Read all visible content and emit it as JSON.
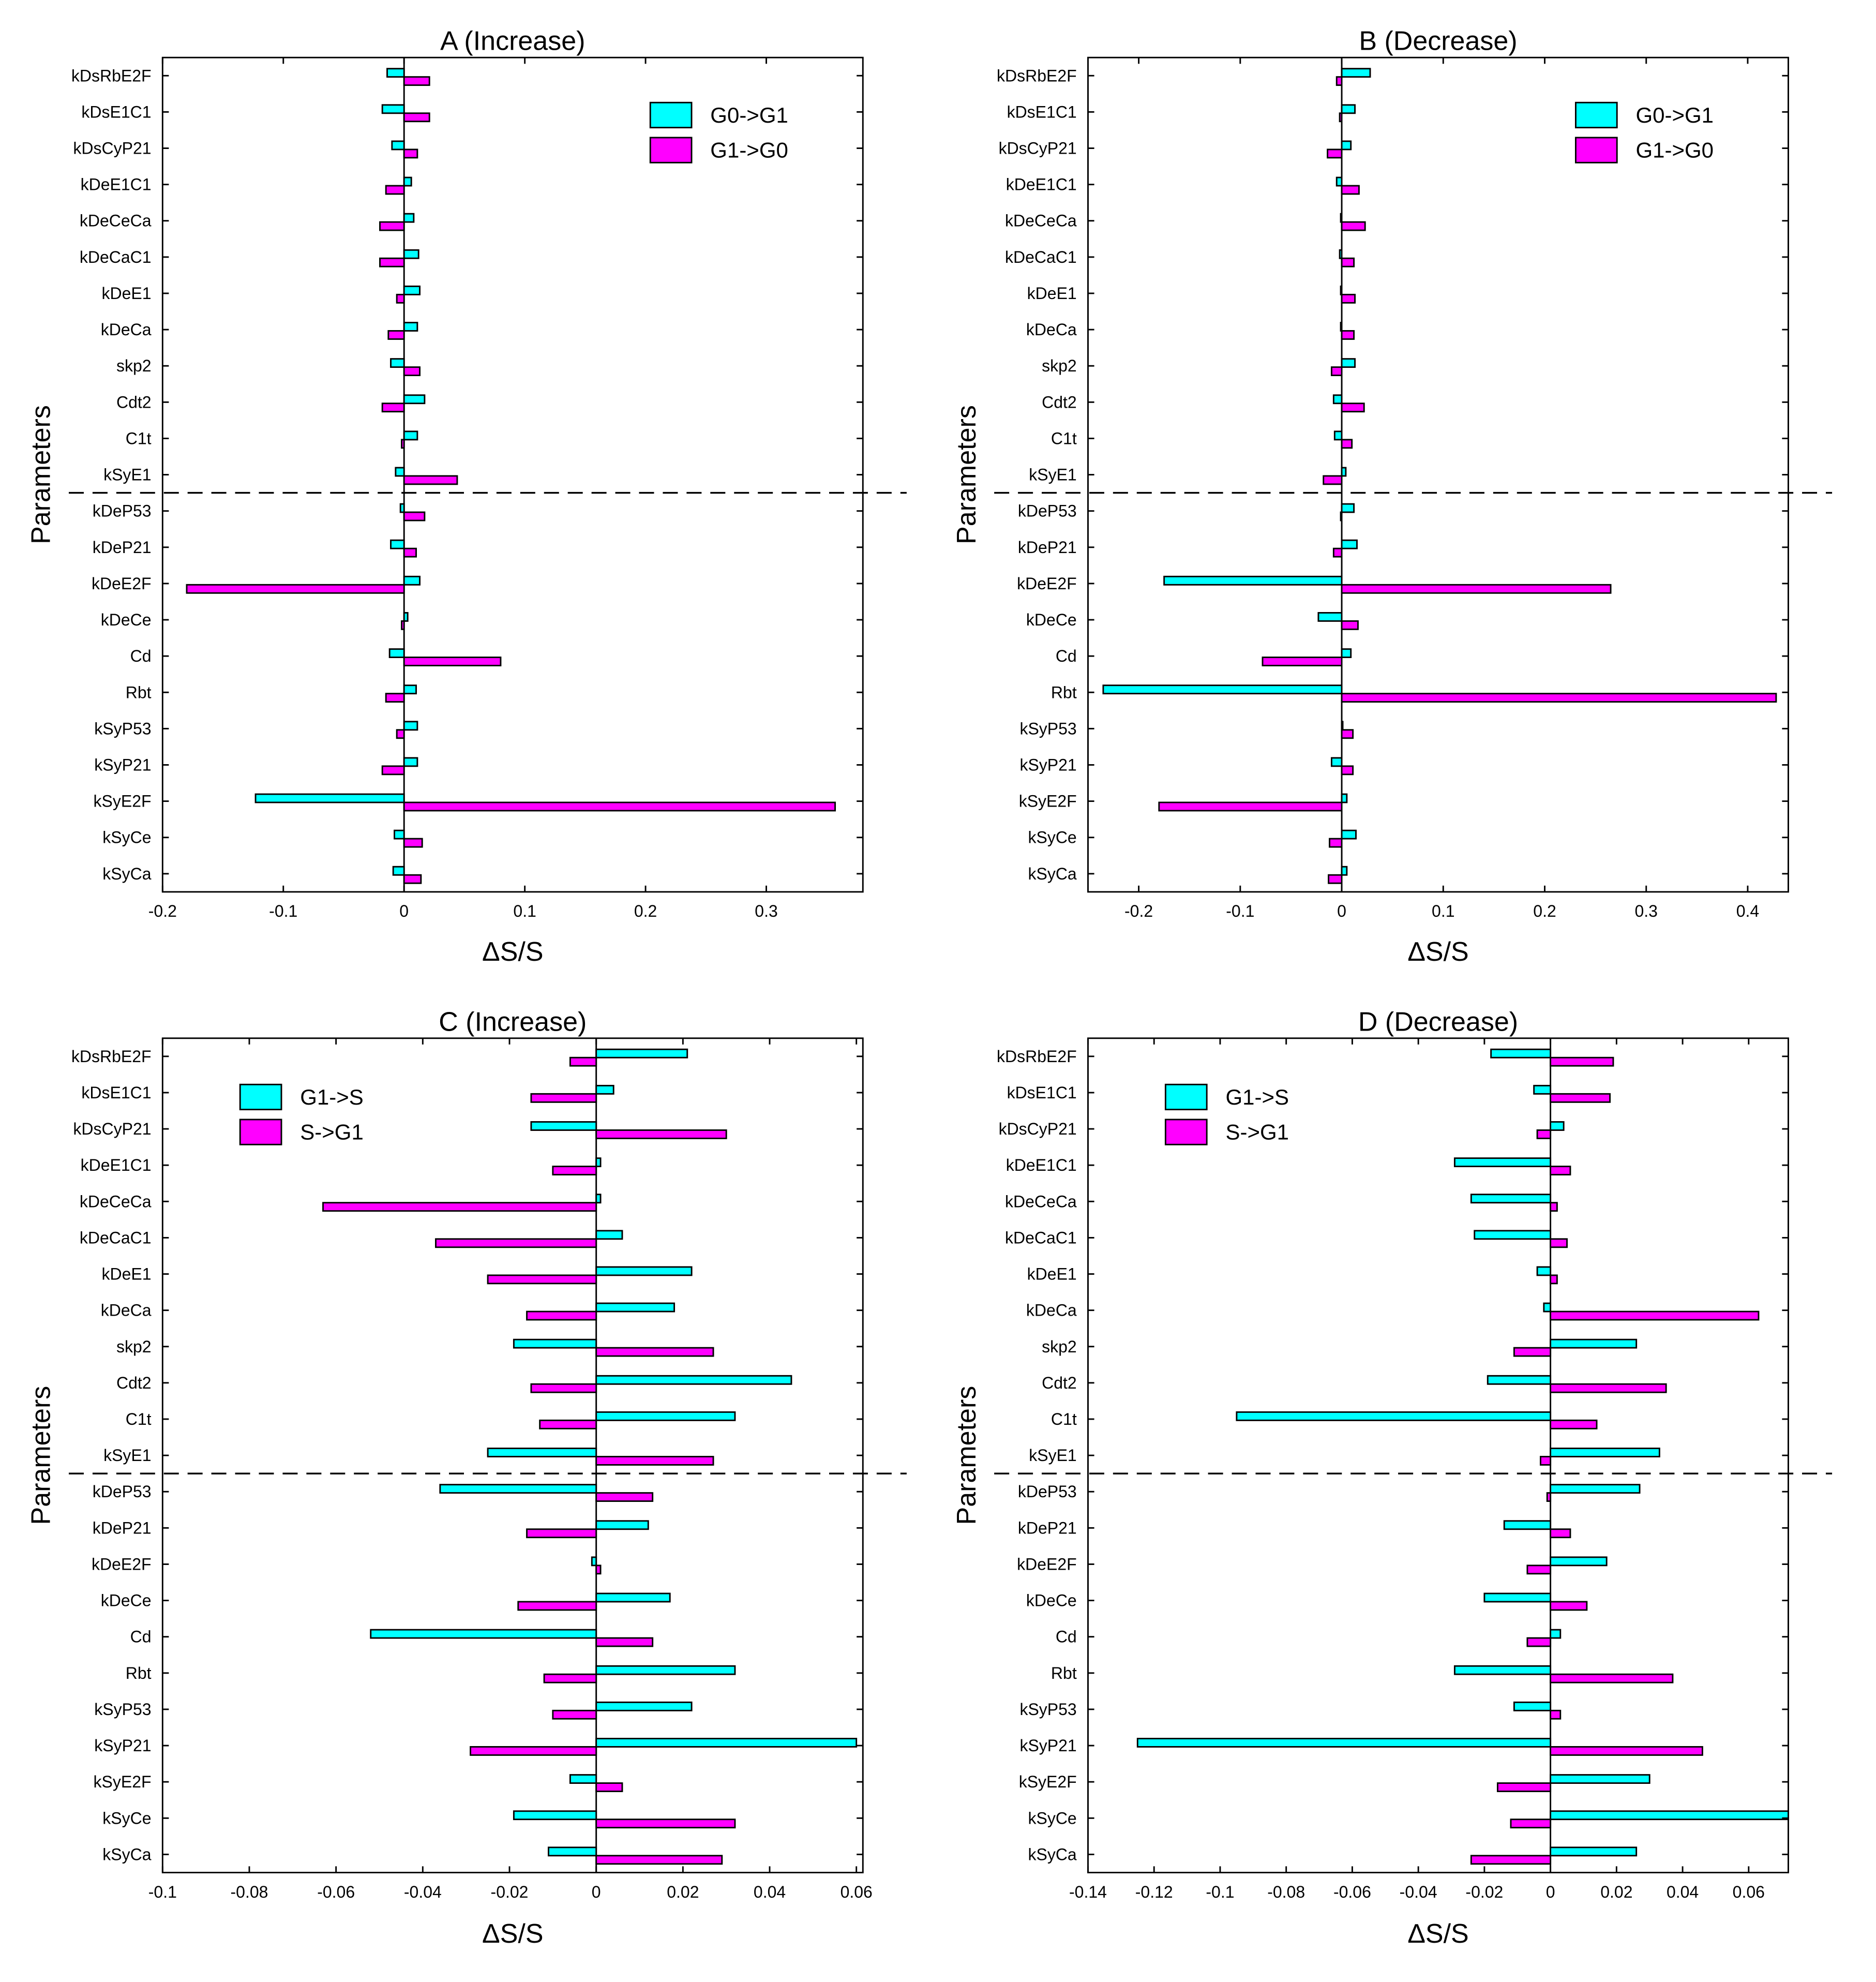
{
  "colors": {
    "series1": "#00FFFF",
    "series2": "#FF00FF",
    "edge": "#000000"
  },
  "chart_data": [
    {
      "type": "bar",
      "orientation": "horizontal",
      "title": "A (Increase)",
      "xlabel": "ΔS/S",
      "ylabel": "Parameters",
      "xlim": [
        -0.2,
        0.38
      ],
      "xticks": [
        -0.2,
        -0.1,
        0,
        0.1,
        0.2,
        0.3
      ],
      "xtick_labels": [
        "-0.2",
        "-0.1",
        "0",
        "0.1",
        "0.2",
        "0.3"
      ],
      "legend_position": "top-right",
      "divider_after_index": 11,
      "categories": [
        "kDsRbE2F",
        "kDsE1C1",
        "kDsCyP21",
        "kDeE1C1",
        "kDeCeCa",
        "kDeCaC1",
        "kDeE1",
        "kDeCa",
        "skp2",
        "Cdt2",
        "C1t",
        "kSyE1",
        "kDeP53",
        "kDeP21",
        "kDeE2F",
        "kDeCe",
        "Cd",
        "Rbt",
        "kSyP53",
        "kSyP21",
        "kSyE2F",
        "kSyCe",
        "kSyCa"
      ],
      "series": [
        {
          "name": "G0->G1",
          "values": [
            -0.014,
            -0.018,
            -0.01,
            0.006,
            0.008,
            0.012,
            0.013,
            0.011,
            -0.011,
            0.017,
            0.011,
            -0.007,
            -0.003,
            -0.011,
            0.013,
            0.003,
            -0.012,
            0.01,
            0.011,
            0.011,
            -0.123,
            -0.008,
            -0.009
          ]
        },
        {
          "name": "G1->G0",
          "values": [
            0.021,
            0.021,
            0.011,
            -0.015,
            -0.02,
            -0.02,
            -0.006,
            -0.013,
            0.013,
            -0.018,
            -0.002,
            0.044,
            0.017,
            0.01,
            -0.18,
            -0.002,
            0.08,
            -0.015,
            -0.006,
            -0.018,
            0.357,
            0.015,
            0.014
          ]
        }
      ]
    },
    {
      "type": "bar",
      "orientation": "horizontal",
      "title": "B (Decrease)",
      "xlabel": "ΔS/S",
      "ylabel": "Parameters",
      "xlim": [
        -0.25,
        0.44
      ],
      "xticks": [
        -0.2,
        -0.1,
        0,
        0.1,
        0.2,
        0.3,
        0.4
      ],
      "xtick_labels": [
        "-0.2",
        "-0.1",
        "0",
        "0.1",
        "0.2",
        "0.3",
        "0.4"
      ],
      "legend_position": "top-right",
      "divider_after_index": 11,
      "categories": [
        "kDsRbE2F",
        "kDsE1C1",
        "kDsCyP21",
        "kDeE1C1",
        "kDeCeCa",
        "kDeCaC1",
        "kDeE1",
        "kDeCa",
        "skp2",
        "Cdt2",
        "C1t",
        "kSyE1",
        "kDeP53",
        "kDeP21",
        "kDeE2F",
        "kDeCe",
        "Cd",
        "Rbt",
        "kSyP53",
        "kSyP21",
        "kSyE2F",
        "kSyCe",
        "kSyCa"
      ],
      "series": [
        {
          "name": "G0->G1",
          "values": [
            0.028,
            0.013,
            0.009,
            -0.005,
            -0.001,
            -0.002,
            -0.001,
            -0.001,
            0.013,
            -0.008,
            -0.007,
            0.004,
            0.012,
            0.015,
            -0.175,
            -0.023,
            0.009,
            -0.235,
            0.001,
            -0.01,
            0.005,
            0.014,
            0.005
          ]
        },
        {
          "name": "G1->G0",
          "values": [
            -0.005,
            -0.002,
            -0.014,
            0.017,
            0.023,
            0.012,
            0.013,
            0.012,
            -0.01,
            0.022,
            0.01,
            -0.018,
            -0.001,
            -0.008,
            0.265,
            0.016,
            -0.078,
            0.428,
            0.011,
            0.011,
            -0.18,
            -0.012,
            -0.013
          ]
        }
      ]
    },
    {
      "type": "bar",
      "orientation": "horizontal",
      "title": "C (Increase)",
      "xlabel": "ΔS/S",
      "ylabel": "Parameters",
      "xlim": [
        -0.1,
        0.0615
      ],
      "xticks": [
        -0.1,
        -0.08,
        -0.06,
        -0.04,
        -0.02,
        0,
        0.02,
        0.04,
        0.06
      ],
      "xtick_labels": [
        "-0.1",
        "-0.08",
        "-0.06",
        "-0.04",
        "-0.02",
        "0",
        "0.02",
        "0.04",
        "0.06"
      ],
      "legend_position": "top-left",
      "divider_after_index": 11,
      "categories": [
        "kDsRbE2F",
        "kDsE1C1",
        "kDsCyP21",
        "kDeE1C1",
        "kDeCeCa",
        "kDeCaC1",
        "kDeE1",
        "kDeCa",
        "skp2",
        "Cdt2",
        "C1t",
        "kSyE1",
        "kDeP53",
        "kDeP21",
        "kDeE2F",
        "kDeCe",
        "Cd",
        "Rbt",
        "kSyP53",
        "kSyP21",
        "kSyE2F",
        "kSyCe",
        "kSyCa"
      ],
      "series": [
        {
          "name": "G1->S",
          "values": [
            0.021,
            0.004,
            -0.015,
            0.001,
            0.001,
            0.006,
            0.022,
            0.018,
            -0.019,
            0.045,
            0.032,
            -0.025,
            -0.036,
            0.012,
            -0.001,
            0.017,
            -0.052,
            0.032,
            0.022,
            0.06,
            -0.006,
            -0.019,
            -0.011
          ]
        },
        {
          "name": "S->G1",
          "values": [
            -0.006,
            -0.015,
            0.03,
            -0.01,
            -0.063,
            -0.037,
            -0.025,
            -0.016,
            0.027,
            -0.015,
            -0.013,
            0.027,
            0.013,
            -0.016,
            0.001,
            -0.018,
            0.013,
            -0.012,
            -0.01,
            -0.029,
            0.006,
            0.032,
            0.029
          ]
        }
      ]
    },
    {
      "type": "bar",
      "orientation": "horizontal",
      "title": "D (Decrease)",
      "xlabel": "ΔS/S",
      "ylabel": "Parameters",
      "xlim": [
        -0.14,
        0.072
      ],
      "xticks": [
        -0.14,
        -0.12,
        -0.1,
        -0.08,
        -0.06,
        -0.04,
        -0.02,
        0,
        0.02,
        0.04,
        0.06
      ],
      "xtick_labels": [
        "-0.14",
        "-0.12",
        "-0.1",
        "-0.08",
        "-0.06",
        "-0.04",
        "-0.02",
        "0",
        "0.02",
        "0.04",
        "0.06"
      ],
      "legend_position": "top-left",
      "divider_after_index": 11,
      "categories": [
        "kDsRbE2F",
        "kDsE1C1",
        "kDsCyP21",
        "kDeE1C1",
        "kDeCeCa",
        "kDeCaC1",
        "kDeE1",
        "kDeCa",
        "skp2",
        "Cdt2",
        "C1t",
        "kSyE1",
        "kDeP53",
        "kDeP21",
        "kDeE2F",
        "kDeCe",
        "Cd",
        "Rbt",
        "kSyP53",
        "kSyP21",
        "kSyE2F",
        "kSyCe",
        "kSyCa"
      ],
      "series": [
        {
          "name": "G1->S",
          "values": [
            -0.018,
            -0.005,
            0.004,
            -0.029,
            -0.024,
            -0.023,
            -0.004,
            -0.002,
            0.026,
            -0.019,
            -0.095,
            0.033,
            0.027,
            -0.014,
            0.017,
            -0.02,
            0.003,
            -0.029,
            -0.011,
            -0.125,
            0.03,
            0.072,
            0.026
          ]
        },
        {
          "name": "S->G1",
          "values": [
            0.019,
            0.018,
            -0.004,
            0.006,
            0.002,
            0.005,
            0.002,
            0.063,
            -0.011,
            0.035,
            0.014,
            -0.003,
            -0.001,
            0.006,
            -0.007,
            0.011,
            -0.007,
            0.037,
            0.003,
            0.046,
            -0.016,
            -0.012,
            -0.024
          ]
        }
      ]
    }
  ]
}
